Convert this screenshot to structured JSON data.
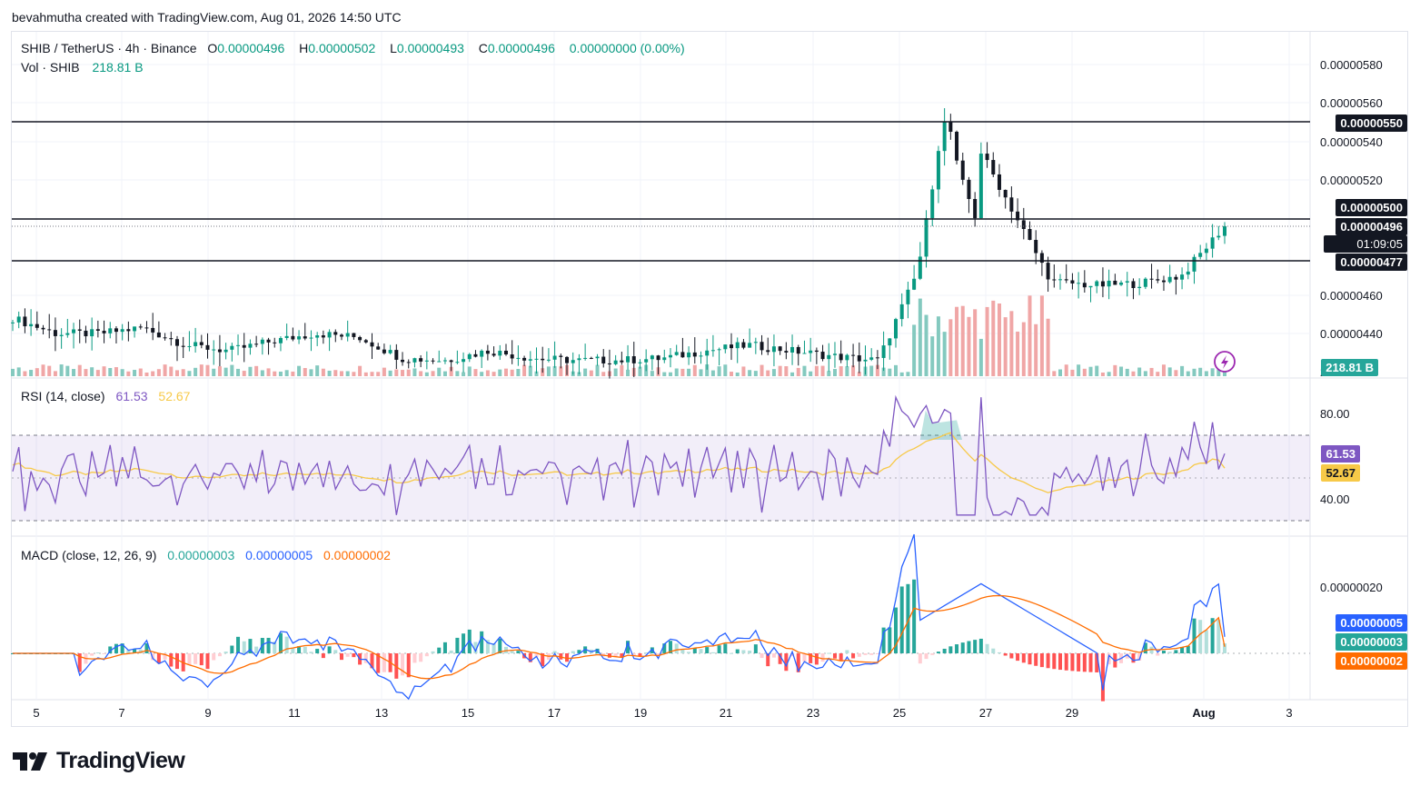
{
  "header": {
    "created_text": "bevahmutha created with TradingView.com, Aug 01, 2026 14:50 UTC"
  },
  "symbol": {
    "title": "SHIB / TetherUS · 4h · Binance",
    "open_label": "O",
    "open": "0.00000496",
    "high_label": "H",
    "high": "0.00000502",
    "low_label": "L",
    "low": "0.00000493",
    "close_label": "C",
    "close": "0.00000496",
    "change": "0.00000000 (0.00%)"
  },
  "volume": {
    "label": "Vol · SHIB",
    "value": "218.81 B",
    "axis_badge": "218.81 B"
  },
  "price_levels": {
    "resistance_top": "0.00000550",
    "resistance_mid": "0.00000500",
    "current": "0.00000496",
    "countdown": "01:09:05",
    "support": "0.00000477"
  },
  "rsi": {
    "label": "RSI (14, close)",
    "value": "61.53",
    "ma_value": "52.67"
  },
  "macd": {
    "label": "MACD (close, 12, 26, 9)",
    "histogram": "0.00000003",
    "macd": "0.00000005",
    "signal": "0.00000002"
  },
  "colors": {
    "up": "#089981",
    "down": "#131722",
    "vol_up": "#84c9bf",
    "vol_down": "#f0a6a6",
    "rsi": "#7e57c2",
    "rsi_ma": "#f7c948",
    "macd": "#2962ff",
    "signal": "#ff6d00",
    "hist_up_strong": "#26a69a",
    "hist_up_weak": "#b2dfdb",
    "hist_down_strong": "#ff5252",
    "hist_down_weak": "#ffcdd2"
  },
  "footer": {
    "brand": "TradingView"
  },
  "chart_data": {
    "type": "candlestick",
    "timeframe": "4h",
    "price_axis_ticks": [
      "0.00000580",
      "0.00000560",
      "0.00000540",
      "0.00000520",
      "0.00000460",
      "0.00000440",
      "20"
    ],
    "price_range": [
      4.22e-06,
      5.88e-06
    ],
    "horizontal_lines": [
      5.5e-06,
      5e-06,
      4.77e-06
    ],
    "x_ticks": [
      "5",
      "7",
      "9",
      "11",
      "13",
      "15",
      "17",
      "19",
      "21",
      "23",
      "25",
      "27",
      "29",
      "Aug",
      "3"
    ],
    "series_approx_close": [
      {
        "x": "4",
        "y": 4.48e-06
      },
      {
        "x": "5",
        "y": 4.4e-06
      },
      {
        "x": "6",
        "y": 4.4e-06
      },
      {
        "x": "7",
        "y": 4.43e-06
      },
      {
        "x": "8",
        "y": 4.34e-06
      },
      {
        "x": "9",
        "y": 4.31e-06
      },
      {
        "x": "10",
        "y": 4.36e-06
      },
      {
        "x": "11",
        "y": 4.4e-06
      },
      {
        "x": "12",
        "y": 4.38e-06
      },
      {
        "x": "13",
        "y": 4.27e-06
      },
      {
        "x": "14",
        "y": 4.26e-06
      },
      {
        "x": "15",
        "y": 4.31e-06
      },
      {
        "x": "16",
        "y": 4.27e-06
      },
      {
        "x": "17",
        "y": 4.26e-06
      },
      {
        "x": "18",
        "y": 4.26e-06
      },
      {
        "x": "19",
        "y": 4.27e-06
      },
      {
        "x": "20",
        "y": 4.31e-06
      },
      {
        "x": "21",
        "y": 4.34e-06
      },
      {
        "x": "22",
        "y": 4.31e-06
      },
      {
        "x": "23",
        "y": 4.28e-06
      },
      {
        "x": "24",
        "y": 4.26e-06
      },
      {
        "x": "25",
        "y": 4.77e-06
      },
      {
        "x": "26",
        "y": 5.5e-06
      },
      {
        "x": "27",
        "y": 5.08e-06
      },
      {
        "x": "28",
        "y": 4.67e-06
      },
      {
        "x": "29",
        "y": 4.65e-06
      },
      {
        "x": "30",
        "y": 4.66e-06
      },
      {
        "x": "31",
        "y": 4.7e-06
      },
      {
        "x": "Aug 1",
        "y": 4.96e-06
      }
    ],
    "rsi_axis_ticks": [
      "80.00",
      "40.00"
    ],
    "rsi_range": [
      20,
      100
    ],
    "rsi_bands": [
      70,
      50,
      30
    ],
    "macd_axis_ticks": [
      "0.00000020"
    ],
    "grid": true
  }
}
